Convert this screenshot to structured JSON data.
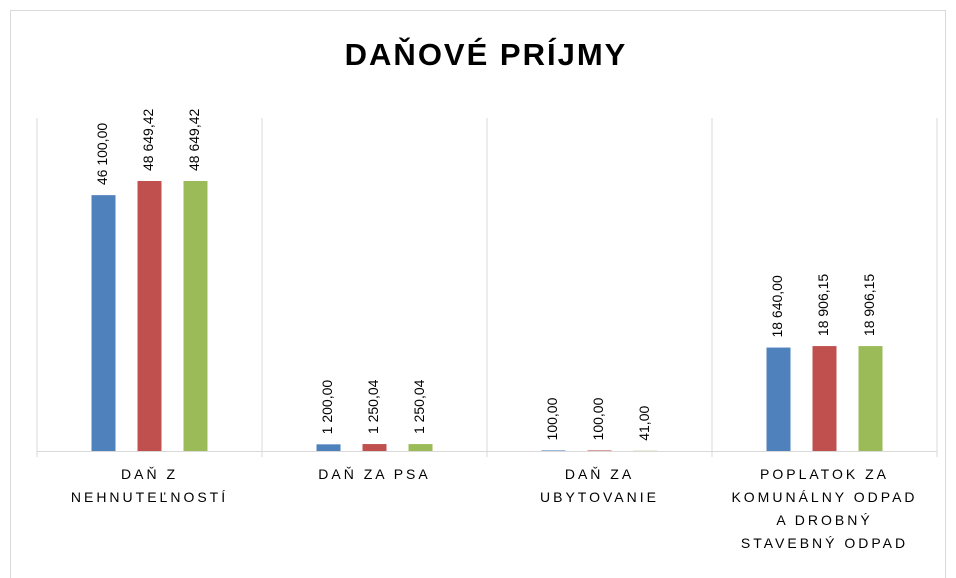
{
  "chart_data": {
    "type": "bar",
    "title": "DAŇOVÉ PRÍJMY",
    "categories": [
      "DAŇ Z NEHNUTEĽNOSTÍ",
      "DAŇ ZA PSA",
      "DAŇ ZA UBYTOVANIE",
      "POPLATOK ZA KOMUNÁLNY ODPAD A DROBNÝ STAVEBNÝ ODPAD"
    ],
    "series": [
      {
        "color": "#4f81bd",
        "values": [
          46100,
          1200,
          100,
          18640
        ],
        "value_labels": [
          "46 100,00",
          "1 200,00",
          "100,00",
          "18 640,00"
        ]
      },
      {
        "color": "#c0504d",
        "values": [
          48649.42,
          1250.04,
          100,
          18906.15
        ],
        "value_labels": [
          "48 649,42",
          "1 250,04",
          "100,00",
          "18 906,15"
        ]
      },
      {
        "color": "#9bbb59",
        "values": [
          48649.42,
          1250.04,
          41,
          18906.15
        ],
        "value_labels": [
          "48 649,42",
          "1 250,04",
          "41,00",
          "18 906,15"
        ]
      }
    ],
    "ylim": [
      0,
      60000
    ]
  }
}
